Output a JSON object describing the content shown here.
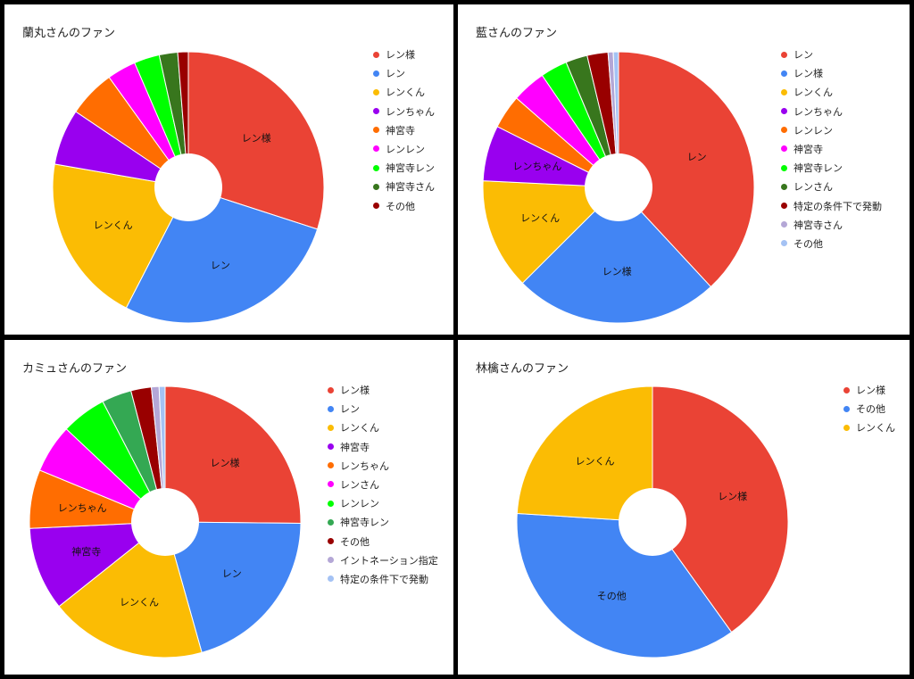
{
  "chart_data": [
    {
      "type": "pie",
      "title": "蘭丸さんのファン",
      "categories": [
        "レン様",
        "レン",
        "レンくん",
        "レンちゃん",
        "神宮寺",
        "レンレン",
        "神宮寺レン",
        "神宮寺さん",
        "その他"
      ],
      "values": [
        28.7,
        26.4,
        19.3,
        6.4,
        5.4,
        3.3,
        2.9,
        2.1,
        1.2
      ],
      "colors": [
        "#ea4335",
        "#4285f4",
        "#fbbc04",
        "#9900ef",
        "#ff6d01",
        "#ff00ff",
        "#00ff00",
        "#38761d",
        "#990000"
      ],
      "labels_on_slices": [
        "レン様",
        "レン",
        "レンくん",
        "",
        "",
        "",
        "",
        "",
        ""
      ]
    },
    {
      "type": "pie",
      "title": "藍さんのファン",
      "categories": [
        "レン",
        "レン様",
        "レンくん",
        "レンちゃん",
        "レンレン",
        "神宮寺",
        "神宮寺レン",
        "レンさん",
        "特定の条件下で発動",
        "神宮寺さん",
        "その他"
      ],
      "values": [
        36.8,
        23.6,
        12.8,
        6.4,
        3.9,
        3.9,
        3.1,
        2.5,
        2.4,
        0.6,
        0.6
      ],
      "colors": [
        "#ea4335",
        "#4285f4",
        "#fbbc04",
        "#9900ef",
        "#ff6d01",
        "#ff00ff",
        "#00ff00",
        "#38761d",
        "#990000",
        "#b4a7d6",
        "#a4c2f4"
      ],
      "labels_on_slices": [
        "レン",
        "レン様",
        "レンくん",
        "レンちゃん",
        "",
        "",
        "",
        "",
        "",
        "",
        ""
      ]
    },
    {
      "type": "pie",
      "title": "カミュさんのファン",
      "categories": [
        "レン様",
        "レン",
        "レンくん",
        "神宮寺",
        "レンちゃん",
        "レンさん",
        "レンレン",
        "神宮寺レン",
        "その他",
        "イントネーション指定",
        "特定の条件下で発動"
      ],
      "values": [
        24.8,
        20.2,
        18.4,
        9.8,
        6.9,
        5.7,
        5.3,
        3.5,
        2.4,
        0.9,
        0.7
      ],
      "colors": [
        "#ea4335",
        "#4285f4",
        "#fbbc04",
        "#9900ef",
        "#ff6d01",
        "#ff00ff",
        "#00ff00",
        "#34a853",
        "#990000",
        "#b4a7d6",
        "#a4c2f4"
      ],
      "labels_on_slices": [
        "レン様",
        "レン",
        "レンくん",
        "神宮寺",
        "レンちゃん",
        "",
        "",
        "",
        "",
        "",
        ""
      ]
    },
    {
      "type": "pie",
      "title": "林檎さんのファン",
      "categories": [
        "レン様",
        "その他",
        "レンくん"
      ],
      "values": [
        40.1,
        35.9,
        24.0
      ],
      "colors": [
        "#ea4335",
        "#4285f4",
        "#fbbc04"
      ],
      "labels_on_slices": [
        "レン様",
        "その他",
        "レンくん"
      ]
    }
  ]
}
